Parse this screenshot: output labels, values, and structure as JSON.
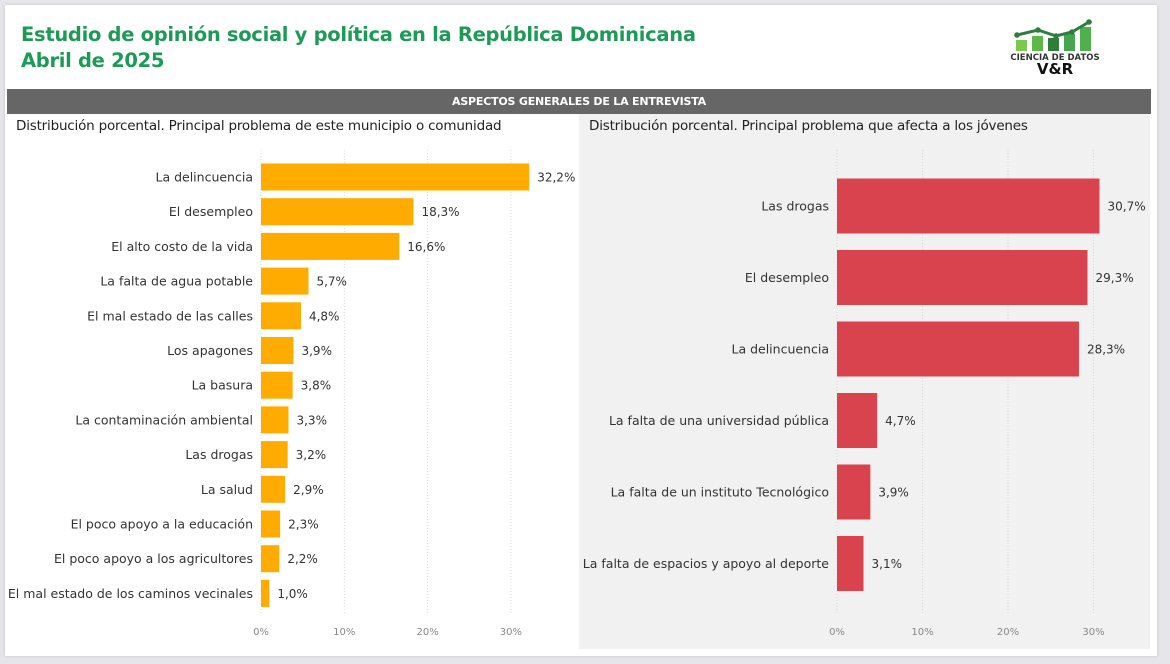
{
  "header": {
    "title_line1": "Estudio de opinión social y política en la República Dominicana",
    "title_line2": "Abril de 2025"
  },
  "logo": {
    "line1": "CIENCIA DE DATOS",
    "line2": "V&R",
    "icon": "bar-line-chart-logo-icon"
  },
  "section": {
    "title": "ASPECTOS GENERALES DE LA ENTREVISTA"
  },
  "colors": {
    "title_green": "#1e9a57",
    "left_bar": "#ffab00",
    "right_bar": "#d9434e",
    "section_bar": "#666666"
  },
  "chart_data": [
    {
      "type": "bar",
      "orientation": "horizontal",
      "title": "Distribución porcental. Principal problema de este municipio o comunidad",
      "categories": [
        "La delincuencia",
        "El desempleo",
        "El alto costo de la vida",
        "La falta de agua potable",
        "El mal estado de las calles",
        "Los apagones",
        "La basura",
        "La contaminación ambiental",
        "Las drogas",
        "La salud",
        "El poco apoyo a la educación",
        "El poco apoyo a los agricultores",
        "El mal estado de los caminos vecinales"
      ],
      "values": [
        32.2,
        18.3,
        16.6,
        5.7,
        4.8,
        3.9,
        3.8,
        3.3,
        3.2,
        2.9,
        2.3,
        2.2,
        1.0
      ],
      "data_labels": [
        "32,2%",
        "18,3%",
        "16,6%",
        "5,7%",
        "4,8%",
        "3,9%",
        "3,8%",
        "3,3%",
        "3,2%",
        "2,9%",
        "2,3%",
        "2,2%",
        "1,0%"
      ],
      "xlabel": "",
      "ylabel": "",
      "xlim": [
        0,
        35
      ],
      "x_ticks": [
        0,
        10,
        20,
        30
      ],
      "x_tick_labels": [
        "0%",
        "10%",
        "20%",
        "30%"
      ],
      "grid": true,
      "color": "#ffab00"
    },
    {
      "type": "bar",
      "orientation": "horizontal",
      "title": "Distribución porcental. Principal problema que afecta a los jóvenes",
      "categories": [
        "Las drogas",
        "El desempleo",
        "La delincuencia",
        "La falta de una universidad pública",
        "La falta de un instituto Tecnológico",
        "La falta de espacios y apoyo al deporte"
      ],
      "values": [
        30.7,
        29.3,
        28.3,
        4.7,
        3.9,
        3.1
      ],
      "data_labels": [
        "30,7%",
        "29,3%",
        "28,3%",
        "4,7%",
        "3,9%",
        "3,1%"
      ],
      "xlabel": "",
      "ylabel": "",
      "xlim": [
        0,
        34
      ],
      "x_ticks": [
        0,
        10,
        20,
        30
      ],
      "x_tick_labels": [
        "0%",
        "10%",
        "20%",
        "30%"
      ],
      "grid": true,
      "color": "#d9434e"
    }
  ]
}
